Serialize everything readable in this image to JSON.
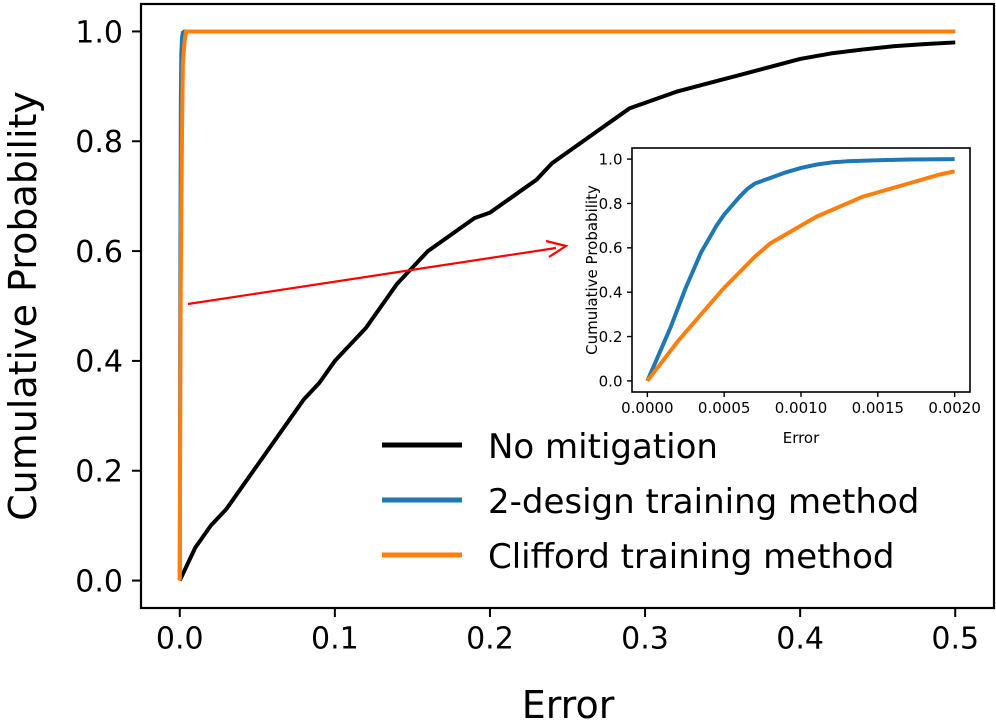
{
  "chart_data": [
    {
      "type": "line",
      "title": "",
      "xlabel": "Error",
      "ylabel": "Cumulative Probability",
      "xlim": [
        -0.025,
        0.525
      ],
      "ylim": [
        -0.05,
        1.05
      ],
      "xticks": [
        0.0,
        0.1,
        0.2,
        0.3,
        0.4,
        0.5
      ],
      "xtick_labels": [
        "0.0",
        "0.1",
        "0.2",
        "0.3",
        "0.4",
        "0.5"
      ],
      "yticks": [
        0.0,
        0.2,
        0.4,
        0.6,
        0.8,
        1.0
      ],
      "ytick_labels": [
        "0.0",
        "0.2",
        "0.4",
        "0.6",
        "0.8",
        "1.0"
      ],
      "grid": false,
      "legend_position": "bottom-right",
      "series": [
        {
          "name": "No mitigation",
          "color": "#000000",
          "x": [
            0.0,
            0.005,
            0.01,
            0.02,
            0.03,
            0.04,
            0.05,
            0.06,
            0.07,
            0.08,
            0.09,
            0.1,
            0.11,
            0.12,
            0.13,
            0.14,
            0.15,
            0.16,
            0.17,
            0.18,
            0.19,
            0.2,
            0.21,
            0.22,
            0.23,
            0.24,
            0.25,
            0.26,
            0.27,
            0.28,
            0.29,
            0.3,
            0.32,
            0.34,
            0.36,
            0.38,
            0.4,
            0.42,
            0.44,
            0.46,
            0.48,
            0.5
          ],
          "y": [
            0.0,
            0.03,
            0.06,
            0.1,
            0.13,
            0.17,
            0.21,
            0.25,
            0.29,
            0.33,
            0.36,
            0.4,
            0.43,
            0.46,
            0.5,
            0.54,
            0.57,
            0.6,
            0.62,
            0.64,
            0.66,
            0.67,
            0.69,
            0.71,
            0.73,
            0.76,
            0.78,
            0.8,
            0.82,
            0.84,
            0.86,
            0.87,
            0.89,
            0.905,
            0.92,
            0.935,
            0.95,
            0.96,
            0.967,
            0.973,
            0.977,
            0.98
          ]
        },
        {
          "name": "2-design training method",
          "color": "#1f77b4",
          "x": [
            0.0,
            0.0003,
            0.0007,
            0.001,
            0.0015,
            0.002,
            0.003,
            0.5
          ],
          "y": [
            0.0,
            0.5,
            0.88,
            0.96,
            0.99,
            0.998,
            1.0,
            1.0
          ]
        },
        {
          "name": "Clifford training method",
          "color": "#ff7f0e",
          "x": [
            0.0,
            0.0005,
            0.001,
            0.0015,
            0.002,
            0.003,
            0.004,
            0.5
          ],
          "y": [
            0.0,
            0.48,
            0.68,
            0.83,
            0.94,
            0.98,
            1.0,
            1.0
          ]
        }
      ]
    },
    {
      "type": "line",
      "title": "",
      "xlabel": "Error",
      "ylabel": "Cumulative Probability",
      "xlim": [
        -0.0001,
        0.0021
      ],
      "ylim": [
        -0.05,
        1.05
      ],
      "xticks": [
        0.0,
        0.0005,
        0.001,
        0.0015,
        0.002
      ],
      "xtick_labels": [
        "0.0000",
        "0.0005",
        "0.0010",
        "0.0015",
        "0.0020"
      ],
      "yticks": [
        0.0,
        0.2,
        0.4,
        0.6,
        0.8,
        1.0
      ],
      "ytick_labels": [
        "0.0",
        "0.2",
        "0.4",
        "0.6",
        "0.8",
        "1.0"
      ],
      "grid": false,
      "series": [
        {
          "color": "#1f77b4",
          "x": [
            0.0,
            5e-05,
            0.0001,
            0.00015,
            0.0002,
            0.00025,
            0.0003,
            0.00035,
            0.0004,
            0.00045,
            0.0005,
            0.00055,
            0.0006,
            0.00065,
            0.0007,
            0.0008,
            0.0009,
            0.001,
            0.0011,
            0.0012,
            0.0013,
            0.0015,
            0.0017,
            0.002
          ],
          "y": [
            0.0,
            0.08,
            0.16,
            0.24,
            0.33,
            0.42,
            0.5,
            0.58,
            0.64,
            0.7,
            0.75,
            0.79,
            0.83,
            0.865,
            0.89,
            0.915,
            0.94,
            0.96,
            0.975,
            0.985,
            0.99,
            0.995,
            0.998,
            1.0
          ]
        },
        {
          "color": "#ff7f0e",
          "x": [
            0.0,
            0.0001,
            0.0002,
            0.0003,
            0.0004,
            0.0005,
            0.0006,
            0.0007,
            0.0008,
            0.0009,
            0.001,
            0.0011,
            0.0012,
            0.0013,
            0.0014,
            0.0015,
            0.0016,
            0.0017,
            0.0018,
            0.0019,
            0.002
          ],
          "y": [
            0.0,
            0.09,
            0.18,
            0.26,
            0.34,
            0.42,
            0.49,
            0.56,
            0.62,
            0.66,
            0.7,
            0.74,
            0.77,
            0.8,
            0.83,
            0.85,
            0.87,
            0.89,
            0.91,
            0.93,
            0.945
          ]
        }
      ]
    }
  ]
}
